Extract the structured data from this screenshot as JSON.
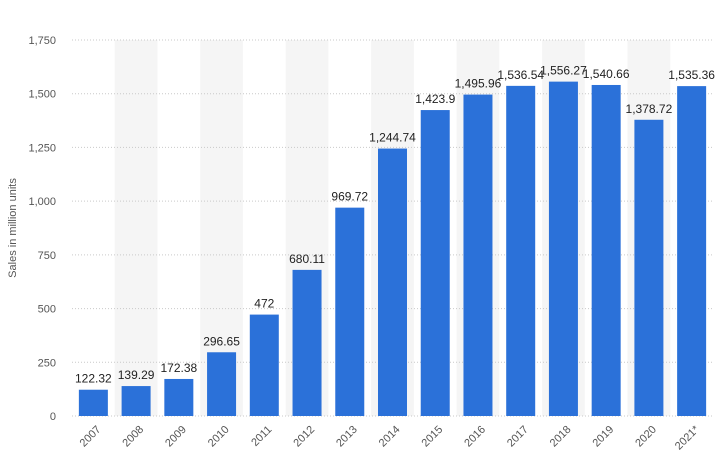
{
  "chart_data": {
    "type": "bar",
    "title": "",
    "xlabel": "",
    "ylabel": "Sales in million units",
    "ylim": [
      0,
      1750
    ],
    "yticks": [
      0,
      250,
      500,
      750,
      1000,
      1250,
      1500,
      1750
    ],
    "ytick_labels": [
      "0",
      "250",
      "500",
      "750",
      "1,000",
      "1,250",
      "1,500",
      "1,750"
    ],
    "grid": true,
    "bar_color": "#2b71d9",
    "categories": [
      "2007",
      "2008",
      "2009",
      "2010",
      "2011",
      "2012",
      "2013",
      "2014",
      "2015",
      "2016",
      "2017",
      "2018",
      "2019",
      "2020",
      "2021*"
    ],
    "values": [
      122.32,
      139.29,
      172.38,
      296.65,
      472,
      680.11,
      969.72,
      1244.74,
      1423.9,
      1495.96,
      1536.54,
      1556.27,
      1540.66,
      1378.72,
      1535.36
    ],
    "value_labels": [
      "122.32",
      "139.29",
      "172.38",
      "296.65",
      "472",
      "680.11",
      "969.72",
      "1,244.74",
      "1,423.9",
      "1,495.96",
      "1,536.54",
      "1,556.27",
      "1,540.66",
      "1,378.72",
      "1,535.36"
    ]
  }
}
